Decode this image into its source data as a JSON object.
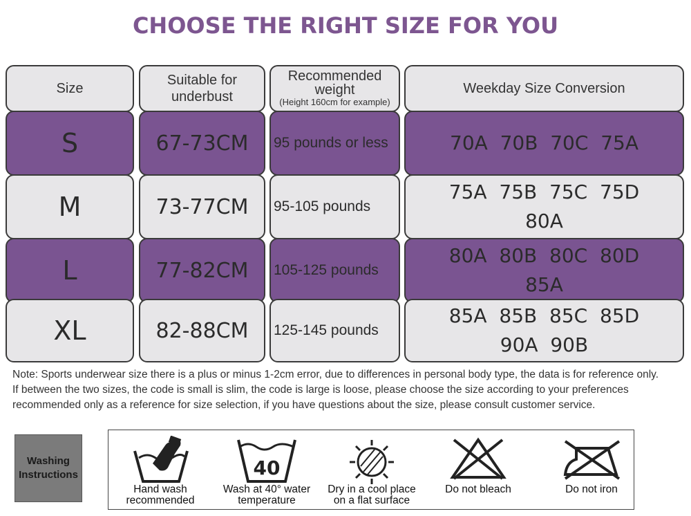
{
  "title": "CHOOSE THE RIGHT SIZE FOR YOU",
  "headers": {
    "size": "Size",
    "underbust_line1": "Suitable for",
    "underbust_line2": "underbust",
    "weight_line1": "Recommended",
    "weight_line2": "weight",
    "weight_sub": "(Height 160cm for example)",
    "conversion": "Weekday Size Conversion"
  },
  "rows": [
    {
      "size": "S",
      "underbust": "67-73CM",
      "weight": "95 pounds or less",
      "conv_line1": "70A  70B  70C  75A",
      "conv_line2": ""
    },
    {
      "size": "M",
      "underbust": "73-77CM",
      "weight": "95-105 pounds",
      "conv_line1": "75A  75B  75C  75D",
      "conv_line2": "80A"
    },
    {
      "size": "L",
      "underbust": "77-82CM",
      "weight": "105-125 pounds",
      "conv_line1": "80A  80B  80C  80D",
      "conv_line2": "85A"
    },
    {
      "size": "XL",
      "underbust": "82-88CM",
      "weight": "125-145 pounds",
      "conv_line1": "85A  85B  85C  85D",
      "conv_line2": "90A  90B"
    }
  ],
  "note": {
    "line1": "Note: Sports underwear size there is a plus or minus 1-2cm error, due to differences in personal body type, the data is for reference only.",
    "line2": "If between the two sizes, the code is small is slim, the code is large is loose, please choose the size according to your preferences",
    "line3": "recommended only as a reference for size selection, if you have questions about the size, please consult customer service."
  },
  "washing": {
    "badge_line1": "Washing",
    "badge_line2": "Instructions",
    "items": [
      {
        "icon": "hand-wash-icon",
        "line1": "Hand wash",
        "line2": "recommended"
      },
      {
        "icon": "wash-40-icon",
        "line1": "Wash at 40° water",
        "line2": "temperature",
        "temp": "40"
      },
      {
        "icon": "dry-flat-shade-icon",
        "line1": "Dry in a cool place",
        "line2": "on a flat surface"
      },
      {
        "icon": "do-not-bleach-icon",
        "line1": "Do not bleach",
        "line2": ""
      },
      {
        "icon": "do-not-iron-icon",
        "line1": "Do not iron",
        "line2": ""
      }
    ]
  },
  "colors": {
    "title": "#7d5690",
    "purple_row": "#7a5491",
    "grey_row": "#e7e6e8",
    "badge": "#7b7b7b"
  }
}
